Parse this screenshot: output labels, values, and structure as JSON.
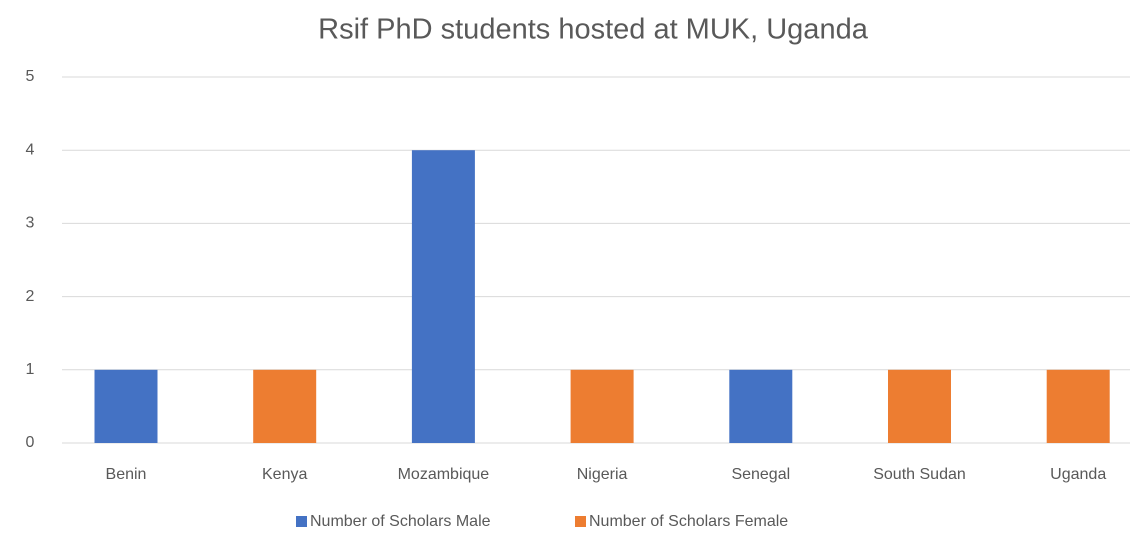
{
  "chart_data": {
    "type": "bar",
    "title": "Rsif PhD students hosted at MUK, Uganda",
    "categories": [
      "Benin",
      "Kenya",
      "Mozambique",
      "Nigeria",
      "Senegal",
      "South Sudan",
      "Uganda"
    ],
    "series": [
      {
        "name": "Number of Scholars Male",
        "color": "#4472c4",
        "values": [
          1,
          null,
          4,
          null,
          1,
          null,
          null
        ]
      },
      {
        "name": "Number of Scholars Female",
        "color": "#ed7d31",
        "values": [
          null,
          1,
          null,
          1,
          null,
          1,
          1
        ]
      }
    ],
    "ylim": [
      0,
      5
    ],
    "yticks": [
      0,
      1,
      2,
      3,
      4,
      5
    ],
    "grid": true,
    "legend": "bottom"
  }
}
